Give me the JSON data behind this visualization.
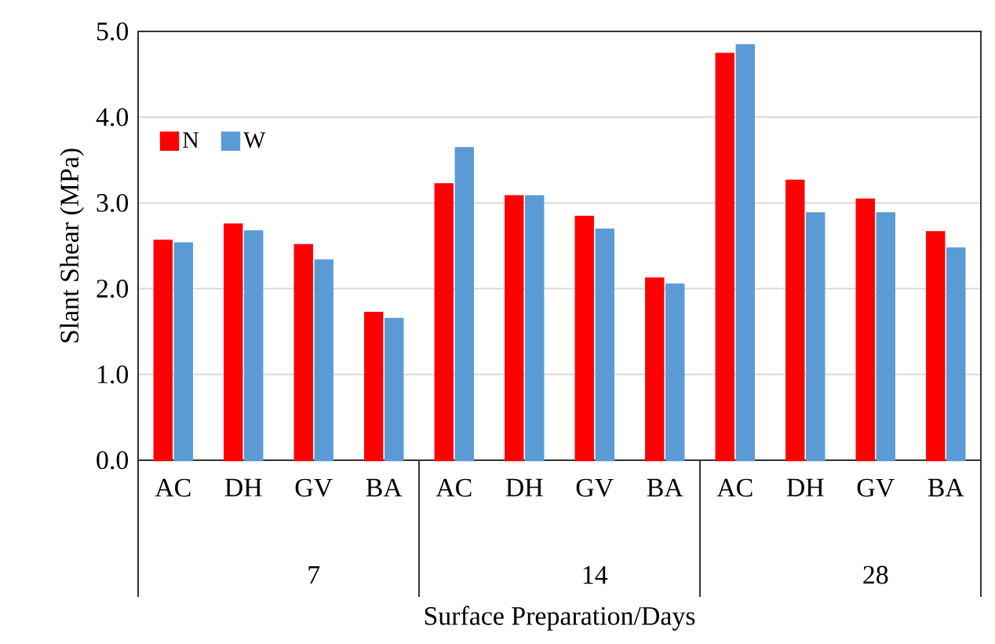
{
  "chart_data": {
    "type": "bar",
    "xlabel": "Surface Preparation/Days",
    "ylabel": "Slant Shear (MPa)",
    "categories": [
      "AC",
      "DH",
      "GV",
      "BA",
      "AC",
      "DH",
      "GV",
      "BA",
      "AC",
      "DH",
      "GV",
      "BA"
    ],
    "annotations": [
      "7",
      "14",
      "28"
    ],
    "series": [
      {
        "name": "N",
        "color": "#ff0000",
        "values": [
          2.56,
          2.75,
          2.51,
          1.72,
          3.22,
          3.08,
          2.84,
          2.12,
          4.74,
          3.26,
          3.04,
          2.66
        ]
      },
      {
        "name": "W",
        "color": "#5b9bd5",
        "values": [
          2.53,
          2.67,
          2.33,
          1.65,
          3.64,
          3.08,
          2.69,
          2.05,
          4.84,
          2.88,
          2.88,
          2.47
        ]
      }
    ],
    "ylim": [
      0,
      5
    ],
    "yticks": [
      {
        "value": 0,
        "label": "0.0"
      },
      {
        "value": 1,
        "label": "1.0"
      },
      {
        "value": 2,
        "label": "2.0"
      },
      {
        "value": 3,
        "label": "3.0"
      },
      {
        "value": 4,
        "label": "4.0"
      },
      {
        "value": 5,
        "label": "5.0"
      }
    ],
    "grid": "y",
    "legend": "top left"
  }
}
